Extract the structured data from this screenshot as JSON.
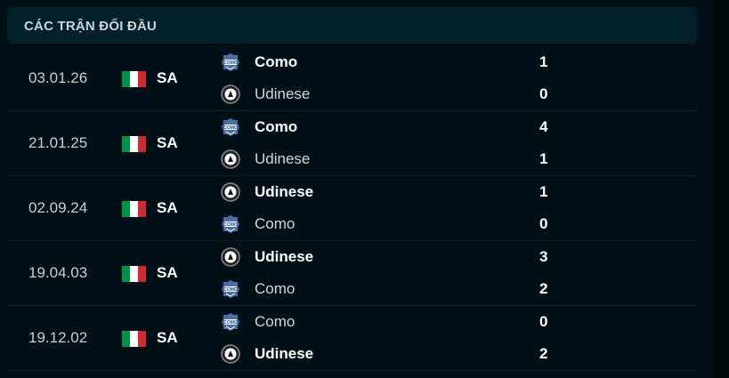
{
  "header": {
    "title": "CÁC TRẬN ĐỐI ĐẦU"
  },
  "colors": {
    "flag_green": "#009246",
    "flag_white": "#ffffff",
    "flag_red": "#ce2b37"
  },
  "matches": [
    {
      "date": "03.01.26",
      "competition": "SA",
      "flag": "italy-flag",
      "home": {
        "name": "Como",
        "logo": "como-logo",
        "score": "1",
        "winner": true
      },
      "away": {
        "name": "Udinese",
        "logo": "udinese-logo",
        "score": "0",
        "winner": false
      }
    },
    {
      "date": "21.01.25",
      "competition": "SA",
      "flag": "italy-flag",
      "home": {
        "name": "Como",
        "logo": "como-logo",
        "score": "4",
        "winner": true
      },
      "away": {
        "name": "Udinese",
        "logo": "udinese-logo",
        "score": "1",
        "winner": false
      }
    },
    {
      "date": "02.09.24",
      "competition": "SA",
      "flag": "italy-flag",
      "home": {
        "name": "Udinese",
        "logo": "udinese-logo",
        "score": "1",
        "winner": true
      },
      "away": {
        "name": "Como",
        "logo": "como-logo",
        "score": "0",
        "winner": false
      }
    },
    {
      "date": "19.04.03",
      "competition": "SA",
      "flag": "italy-flag",
      "home": {
        "name": "Udinese",
        "logo": "udinese-logo",
        "score": "3",
        "winner": true
      },
      "away": {
        "name": "Como",
        "logo": "como-logo",
        "score": "2",
        "winner": false
      }
    },
    {
      "date": "19.12.02",
      "competition": "SA",
      "flag": "italy-flag",
      "home": {
        "name": "Como",
        "logo": "como-logo",
        "score": "0",
        "winner": false
      },
      "away": {
        "name": "Udinese",
        "logo": "udinese-logo",
        "score": "2",
        "winner": true
      }
    }
  ]
}
